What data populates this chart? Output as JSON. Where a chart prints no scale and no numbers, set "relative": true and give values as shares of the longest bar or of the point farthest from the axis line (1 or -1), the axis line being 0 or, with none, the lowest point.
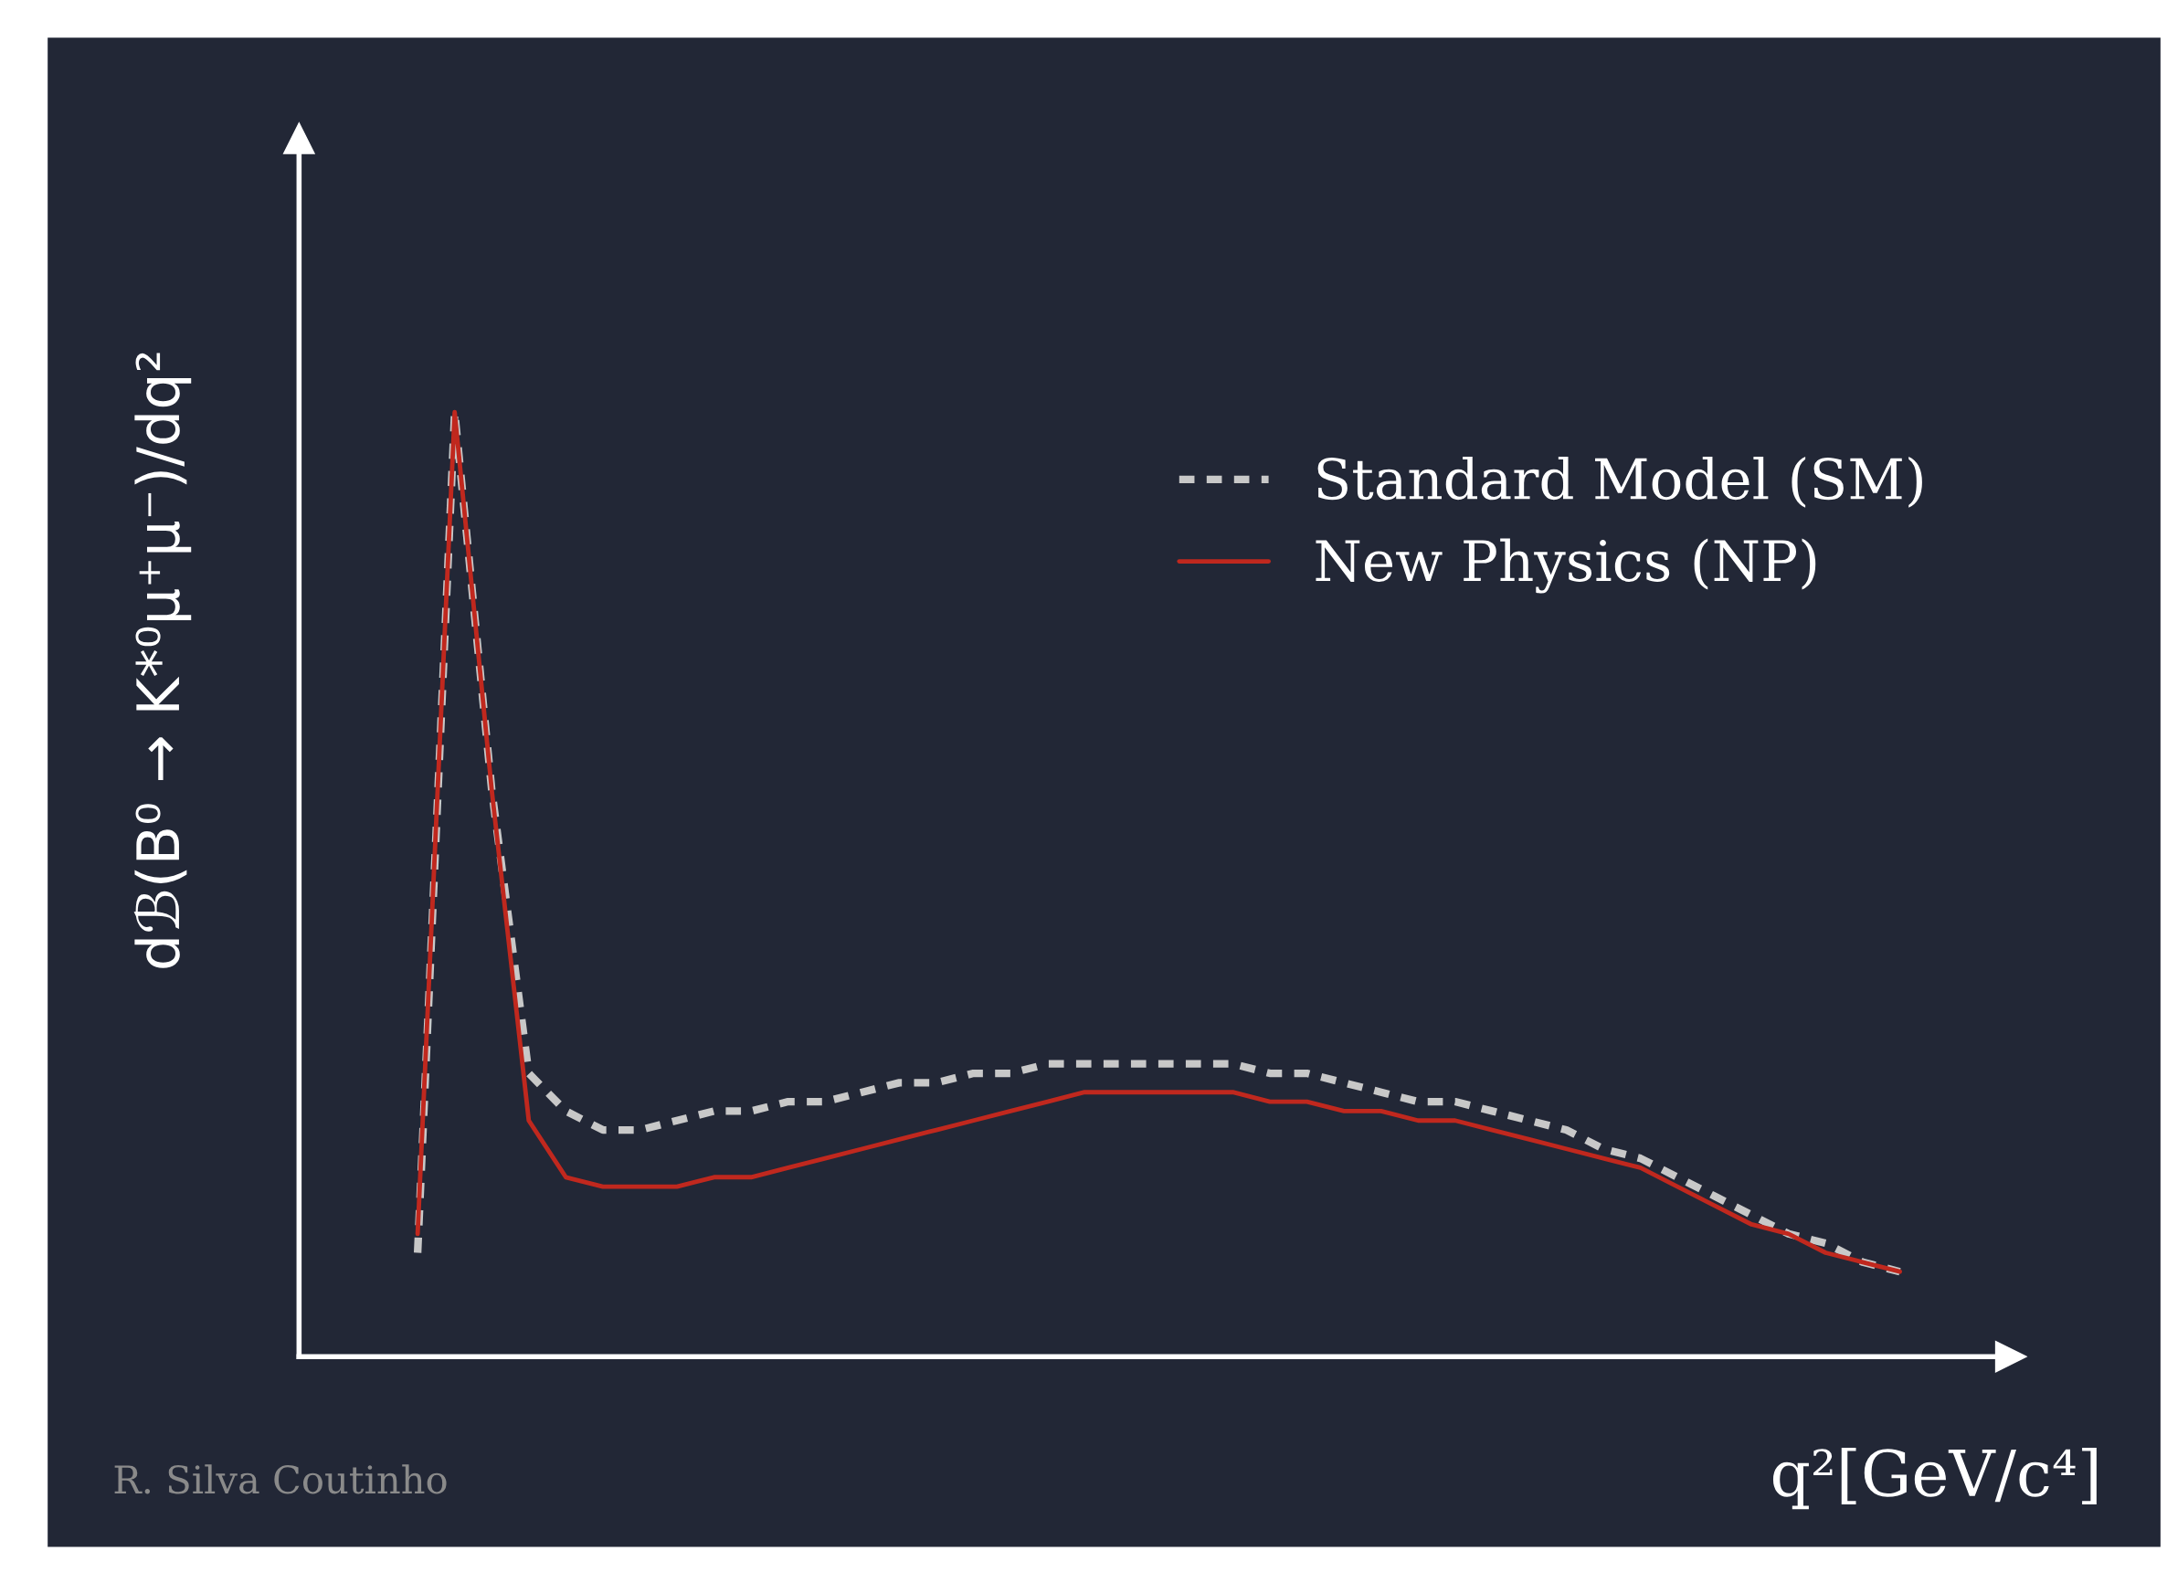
{
  "chart_data": {
    "type": "line",
    "relative": true,
    "legend": "top right",
    "marker": "none",
    "xlabel": "q²[GeV/c⁴]",
    "ylabel": "dℬ(B⁰ → K*⁰μ⁺μ⁻)/dq²",
    "annotations": [
      "R. Silva Coutinho"
    ],
    "categories": [
      null,
      null,
      null,
      null,
      null,
      null,
      null,
      null,
      null,
      null,
      null,
      null,
      null,
      null,
      null,
      null,
      null,
      null,
      null,
      null,
      null,
      null,
      null,
      null,
      null,
      null,
      null,
      null,
      null,
      null,
      null,
      null,
      null,
      null,
      null,
      null,
      null,
      null,
      null,
      null,
      null
    ],
    "series": [
      {
        "name": "Standard Model (SM)",
        "color": "#c8c8c8",
        "line_style": "dashed",
        "values": [
          0.11,
          1.0,
          0.6,
          0.3,
          0.26,
          0.24,
          0.24,
          0.25,
          0.26,
          0.26,
          0.27,
          0.27,
          0.28,
          0.29,
          0.29,
          0.3,
          0.3,
          0.31,
          0.31,
          0.31,
          0.31,
          0.31,
          0.31,
          0.3,
          0.3,
          0.29,
          0.28,
          0.27,
          0.27,
          0.26,
          0.25,
          0.24,
          0.22,
          0.21,
          0.19,
          0.17,
          0.15,
          0.13,
          0.12,
          0.1,
          0.09
        ]
      },
      {
        "name": "New Physics (NP)",
        "color": "#c0281e",
        "line_style": "solid",
        "values": [
          0.13,
          1.0,
          0.6,
          0.25,
          0.19,
          0.18,
          0.18,
          0.18,
          0.19,
          0.19,
          0.2,
          0.21,
          0.22,
          0.23,
          0.24,
          0.25,
          0.26,
          0.27,
          0.28,
          0.28,
          0.28,
          0.28,
          0.28,
          0.27,
          0.27,
          0.26,
          0.26,
          0.25,
          0.25,
          0.24,
          0.23,
          0.22,
          0.21,
          0.2,
          0.18,
          0.16,
          0.14,
          0.13,
          0.11,
          0.1,
          0.09
        ]
      }
    ]
  }
}
